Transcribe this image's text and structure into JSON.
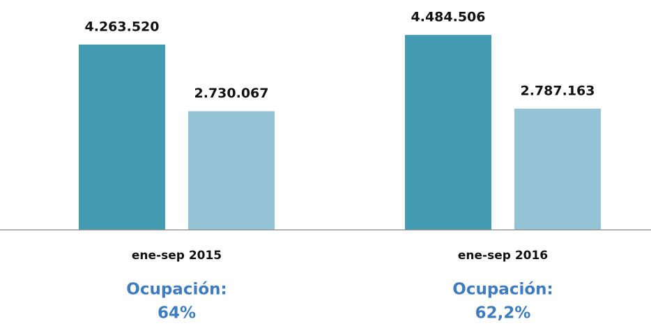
{
  "chart_data": {
    "type": "bar",
    "categories": [
      "ene-sep 2015",
      "ene-sep 2016"
    ],
    "series": [
      {
        "color": "#429bb0",
        "values": [
          4263520,
          4484506
        ],
        "value_labels": [
          "4.263.520",
          "4.484.506"
        ]
      },
      {
        "color": "#93c3d4",
        "values": [
          2730067,
          2787163
        ],
        "value_labels": [
          "2.730.067",
          "2.787.163"
        ]
      }
    ],
    "ylim": [
      0,
      5000000
    ],
    "annotations": [
      {
        "label": "Ocupación:",
        "text": "64%"
      },
      {
        "label": "Ocupación:",
        "text": "62,2%"
      }
    ]
  }
}
